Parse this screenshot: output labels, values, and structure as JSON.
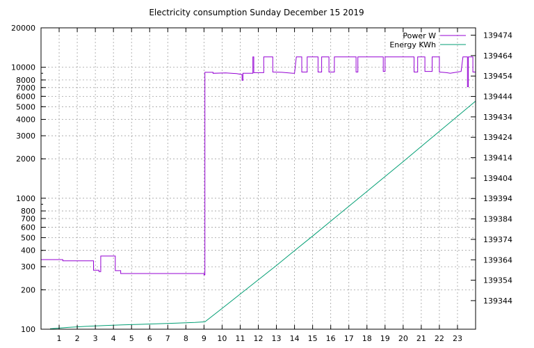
{
  "chart_data": {
    "type": "line",
    "title": "Electricity consumption Sunday December 15 2019",
    "xlabel": "",
    "ylabel": "",
    "xlim": [
      0,
      24
    ],
    "ylim_left": [
      100,
      20000
    ],
    "ylim_right": [
      139330,
      139477.6
    ],
    "left_axis_scale": "log",
    "grid": true,
    "legend_position": "top-right",
    "x_ticks": [
      "1",
      "2",
      "3",
      "4",
      "5",
      "6",
      "7",
      "8",
      "9",
      "10",
      "11",
      "12",
      "13",
      "14",
      "15",
      "16",
      "17",
      "18",
      "19",
      "20",
      "21",
      "22",
      "23"
    ],
    "y_left_ticks": [
      "20000",
      "10000",
      "8000",
      "7000",
      "6000",
      "5000",
      "4000",
      "3000",
      "2000",
      "1000",
      "800",
      "700",
      "600",
      "500",
      "400",
      "300",
      "200",
      "100"
    ],
    "y_right_ticks": [
      "139474",
      "139464",
      "139454",
      "139444",
      "139434",
      "139424",
      "139414",
      "139404",
      "139394",
      "139384",
      "139374",
      "139364",
      "139354",
      "139344"
    ],
    "series": [
      {
        "name": "Power W",
        "color": "#9400d3",
        "axis": "left",
        "points": [
          [
            0.0,
            340
          ],
          [
            1.2,
            340
          ],
          [
            1.2,
            333
          ],
          [
            2.9,
            333
          ],
          [
            2.9,
            282
          ],
          [
            3.2,
            282
          ],
          [
            3.2,
            275
          ],
          [
            3.3,
            275
          ],
          [
            3.3,
            362
          ],
          [
            4.1,
            362
          ],
          [
            4.1,
            280
          ],
          [
            4.4,
            280
          ],
          [
            4.4,
            266
          ],
          [
            9.0,
            266
          ],
          [
            9.0,
            260
          ],
          [
            9.05,
            260
          ],
          [
            9.05,
            9150
          ],
          [
            9.5,
            9150
          ],
          [
            9.5,
            9000
          ],
          [
            10.2,
            9050
          ],
          [
            10.8,
            8950
          ],
          [
            11.1,
            8800
          ],
          [
            11.1,
            7950
          ],
          [
            11.15,
            7950
          ],
          [
            11.15,
            9000
          ],
          [
            11.7,
            9000
          ],
          [
            11.7,
            12000
          ],
          [
            11.75,
            12000
          ],
          [
            11.75,
            9100
          ],
          [
            12.3,
            9100
          ],
          [
            12.3,
            12000
          ],
          [
            12.8,
            12000
          ],
          [
            12.8,
            9200
          ],
          [
            13.3,
            9150
          ],
          [
            13.9,
            9000
          ],
          [
            14.0,
            9000
          ],
          [
            14.1,
            12000
          ],
          [
            14.4,
            12000
          ],
          [
            14.4,
            9200
          ],
          [
            14.7,
            9200
          ],
          [
            14.7,
            12000
          ],
          [
            15.3,
            12000
          ],
          [
            15.3,
            9200
          ],
          [
            15.5,
            9200
          ],
          [
            15.5,
            12000
          ],
          [
            15.9,
            12000
          ],
          [
            15.9,
            9200
          ],
          [
            16.2,
            9200
          ],
          [
            16.2,
            12000
          ],
          [
            17.4,
            12000
          ],
          [
            17.4,
            9200
          ],
          [
            17.5,
            9200
          ],
          [
            17.5,
            12000
          ],
          [
            18.9,
            12000
          ],
          [
            18.9,
            9300
          ],
          [
            19.0,
            9300
          ],
          [
            19.0,
            12000
          ],
          [
            20.6,
            12000
          ],
          [
            20.6,
            9200
          ],
          [
            20.8,
            9200
          ],
          [
            20.8,
            12000
          ],
          [
            21.2,
            12000
          ],
          [
            21.2,
            9300
          ],
          [
            21.6,
            9300
          ],
          [
            21.6,
            12000
          ],
          [
            22.0,
            12000
          ],
          [
            22.0,
            9200
          ],
          [
            22.4,
            9100
          ],
          [
            22.6,
            9000
          ],
          [
            23.0,
            9200
          ],
          [
            23.2,
            9300
          ],
          [
            23.3,
            12000
          ],
          [
            23.55,
            12000
          ],
          [
            23.55,
            7100
          ],
          [
            23.6,
            7100
          ],
          [
            23.6,
            12000
          ],
          [
            23.85,
            12000
          ],
          [
            23.85,
            9200
          ],
          [
            24.0,
            9200
          ]
        ]
      },
      {
        "name": "Energy KWh",
        "color": "#009e73",
        "axis": "right",
        "points": [
          [
            0.5,
            139330.2
          ],
          [
            1.5,
            139330.9
          ],
          [
            2.5,
            139331.4
          ],
          [
            3.5,
            139331.8
          ],
          [
            4.5,
            139332.1
          ],
          [
            5.5,
            139332.4
          ],
          [
            6.5,
            139332.7
          ],
          [
            7.5,
            139333.0
          ],
          [
            8.5,
            139333.3
          ],
          [
            9.05,
            139333.6
          ],
          [
            10.0,
            139340.2
          ],
          [
            11.0,
            139347.2
          ],
          [
            12.0,
            139354.2
          ],
          [
            13.0,
            139361.2
          ],
          [
            14.0,
            139368.5
          ],
          [
            15.0,
            139375.6
          ],
          [
            16.0,
            139382.9
          ],
          [
            17.0,
            139390.2
          ],
          [
            18.0,
            139397.5
          ],
          [
            19.0,
            139404.8
          ],
          [
            20.0,
            139412.1
          ],
          [
            21.0,
            139419.5
          ],
          [
            22.0,
            139426.9
          ],
          [
            23.0,
            139434.3
          ],
          [
            24.0,
            139441.7
          ]
        ]
      }
    ]
  }
}
